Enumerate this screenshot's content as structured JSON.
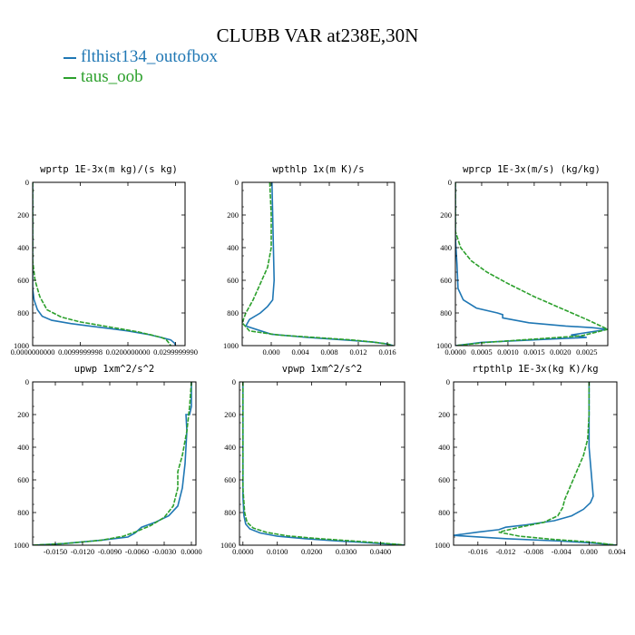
{
  "title": "CLUBB VAR at238E,30N",
  "legend": [
    {
      "label": "flthist134_outofbox",
      "color": "#1f77b4"
    },
    {
      "label": "taus_oob",
      "color": "#2ca02c"
    }
  ],
  "chart_data": [
    {
      "type": "line",
      "title": "wprtp  1E-3x(m kg)/(s kg)",
      "xlim": [
        0.0,
        0.032
      ],
      "ylim": [
        1000,
        0
      ],
      "y_inverted": true,
      "xticks": [
        0.0,
        0.01,
        0.02,
        0.03
      ],
      "xticklabels": [
        "0.0000000000",
        "0.0099999998",
        "0.0200000000",
        "0.0299999990"
      ],
      "yticks": [
        0,
        200,
        400,
        600,
        800,
        1000
      ],
      "series": [
        {
          "name": "flthist134_outofbox",
          "color": "#1f77b4",
          "x": [
            0,
            0,
            0.0003,
            0.001,
            0.002,
            0.004,
            0.008,
            0.012,
            0.016,
            0.02,
            0.024,
            0.027,
            0.029,
            0.0298,
            0.03
          ],
          "y": [
            0,
            650,
            720,
            780,
            820,
            845,
            865,
            880,
            895,
            910,
            930,
            950,
            965,
            985,
            1000
          ]
        },
        {
          "name": "taus_oob",
          "color": "#2ca02c",
          "x": [
            0,
            0,
            0.0005,
            0.0015,
            0.003,
            0.006,
            0.01,
            0.014,
            0.018,
            0.022,
            0.025,
            0.027,
            0.028,
            0.0285,
            0.029
          ],
          "y": [
            0,
            480,
            600,
            700,
            780,
            825,
            855,
            875,
            895,
            915,
            935,
            950,
            962,
            980,
            1000
          ]
        }
      ]
    },
    {
      "type": "line",
      "title": "wpthlp  1x(m K)/s",
      "xlim": [
        -0.004,
        0.017
      ],
      "ylim": [
        1000,
        0
      ],
      "y_inverted": true,
      "xticks": [
        0.0,
        0.004,
        0.008,
        0.012,
        0.016
      ],
      "xticklabels": [
        "0.000",
        "0.004",
        "0.008",
        "0.012",
        "0.016"
      ],
      "yticks": [
        0,
        200,
        400,
        600,
        800,
        1000
      ],
      "series": [
        {
          "name": "flthist134_outofbox",
          "color": "#1f77b4",
          "x": [
            0.0001,
            0.0002,
            0.0003,
            0.0004,
            0.0002,
            -0.0005,
            -0.0015,
            -0.003,
            -0.0035,
            0.0,
            0.005,
            0.01,
            0.014,
            0.016,
            0.0168
          ],
          "y": [
            0,
            200,
            400,
            600,
            720,
            760,
            800,
            840,
            880,
            930,
            950,
            965,
            978,
            990,
            1000
          ]
        },
        {
          "name": "taus_oob",
          "color": "#2ca02c",
          "x": [
            -0.0002,
            0.0,
            0.0,
            -0.0005,
            -0.0015,
            -0.0025,
            -0.0035,
            -0.004,
            -0.003,
            0.001,
            0.006,
            0.011,
            0.014,
            0.016,
            0.0168
          ],
          "y": [
            0,
            200,
            400,
            520,
            620,
            720,
            800,
            860,
            910,
            935,
            950,
            965,
            978,
            990,
            1000
          ]
        }
      ]
    },
    {
      "type": "line",
      "title": "wprcp  1E-3x(m/s) (kg/kg)",
      "xlim": [
        0.0,
        0.0029
      ],
      "ylim": [
        1000,
        0
      ],
      "y_inverted": true,
      "xticks": [
        0.0,
        0.0005,
        0.001,
        0.0015,
        0.002,
        0.0025
      ],
      "xticklabels": [
        "0.0000",
        "0.0005",
        "0.0010",
        "0.0015",
        "0.0020",
        "0.0025"
      ],
      "yticks": [
        0,
        200,
        400,
        600,
        800,
        1000
      ],
      "series": [
        {
          "name": "flthist134_outofbox",
          "color": "#1f77b4",
          "x": [
            0,
            0,
            3e-05,
            5e-05,
            0.00015,
            0.0004,
            0.0008,
            0.0009,
            0.0009,
            0.0014,
            0.0021,
            0.0026,
            0.0029,
            0.0022,
            0.0025,
            0.0018,
            0.0005,
            0.0
          ],
          "y": [
            0,
            340,
            500,
            650,
            720,
            770,
            800,
            810,
            830,
            860,
            880,
            890,
            900,
            935,
            950,
            960,
            980,
            1000
          ]
        },
        {
          "name": "taus_oob",
          "color": "#2ca02c",
          "x": [
            0,
            0,
            0.0001,
            0.0003,
            0.0006,
            0.001,
            0.0015,
            0.002,
            0.0025,
            0.0029,
            0.0024,
            0.0015,
            0.0006,
            0.0
          ],
          "y": [
            0,
            300,
            400,
            480,
            550,
            620,
            700,
            770,
            840,
            900,
            940,
            960,
            980,
            1000
          ]
        }
      ]
    },
    {
      "type": "line",
      "title": "upwp  1xm^2/s^2",
      "xlim": [
        -0.0175,
        0.0005
      ],
      "ylim": [
        1000,
        0
      ],
      "y_inverted": true,
      "xticks": [
        -0.015,
        -0.012,
        -0.009,
        -0.006,
        -0.003,
        0.0
      ],
      "xticklabels": [
        "-0.0150",
        "-0.0120",
        "-0.0090",
        "-0.0060",
        "-0.0030",
        "0.0000"
      ],
      "yticks": [
        0,
        200,
        400,
        600,
        800,
        1000
      ],
      "series": [
        {
          "name": "flthist134_outofbox",
          "color": "#1f77b4",
          "x": [
            0,
            0,
            -0.0002,
            -0.0006,
            -0.0005,
            -0.0007,
            -0.001,
            -0.0015,
            -0.0025,
            -0.004,
            -0.0055,
            -0.0062,
            -0.007,
            -0.01,
            -0.014,
            -0.0175
          ],
          "y": [
            0,
            150,
            200,
            200,
            300,
            500,
            650,
            760,
            820,
            860,
            890,
            925,
            950,
            970,
            990,
            1000
          ]
        },
        {
          "name": "taus_oob",
          "color": "#2ca02c",
          "x": [
            0.0,
            -0.0002,
            -0.0005,
            -0.001,
            -0.0015,
            -0.0015,
            -0.002,
            -0.003,
            -0.0045,
            -0.006,
            -0.0075,
            -0.01,
            -0.014,
            -0.0175
          ],
          "y": [
            0,
            150,
            300,
            450,
            550,
            650,
            760,
            830,
            880,
            915,
            945,
            970,
            990,
            1000
          ]
        }
      ]
    },
    {
      "type": "line",
      "title": "vpwp  1xm^2/s^2",
      "xlim": [
        -0.001,
        0.047
      ],
      "ylim": [
        1000,
        0
      ],
      "y_inverted": true,
      "xticks": [
        0.0,
        0.01,
        0.02,
        0.03,
        0.04
      ],
      "xticklabels": [
        "0.0000",
        "0.0100",
        "0.0200",
        "0.0300",
        "0.0400"
      ],
      "yticks": [
        0,
        200,
        400,
        600,
        800,
        1000
      ],
      "series": [
        {
          "name": "flthist134_outofbox",
          "color": "#1f77b4",
          "x": [
            0.0,
            0.0,
            0.0003,
            0.0008,
            0.002,
            0.005,
            0.01,
            0.018,
            0.026,
            0.034,
            0.04,
            0.045,
            0.047
          ],
          "y": [
            0,
            700,
            820,
            870,
            900,
            925,
            945,
            960,
            972,
            982,
            990,
            996,
            1000
          ]
        },
        {
          "name": "taus_oob",
          "color": "#2ca02c",
          "x": [
            0.0,
            0.0,
            0.0005,
            0.0012,
            0.003,
            0.007,
            0.013,
            0.021,
            0.029,
            0.036,
            0.041,
            0.045,
            0.047
          ],
          "y": [
            0,
            650,
            800,
            860,
            895,
            922,
            943,
            958,
            970,
            980,
            988,
            995,
            1000
          ]
        }
      ]
    },
    {
      "type": "line",
      "title": "rtpthlp  1E-3x(kg K)/kg",
      "xlim": [
        -0.0195,
        0.004
      ],
      "ylim": [
        1000,
        0
      ],
      "y_inverted": true,
      "xticks": [
        -0.016,
        -0.012,
        -0.008,
        -0.004,
        0.0,
        0.004
      ],
      "xticklabels": [
        "-0.016",
        "-0.012",
        "-0.008",
        "-0.004",
        "0.000",
        "0.004"
      ],
      "yticks": [
        0,
        200,
        400,
        600,
        800,
        1000
      ],
      "series": [
        {
          "name": "flthist134_outofbox",
          "color": "#1f77b4",
          "x": [
            0.0,
            0.0,
            0.0,
            0.0003,
            0.0005,
            0.0006,
            0.0002,
            -0.0008,
            -0.0025,
            -0.005,
            -0.009,
            -0.012,
            -0.013,
            -0.016,
            -0.0195,
            -0.012,
            -0.004,
            0.0,
            0.002,
            0.004
          ],
          "y": [
            0,
            200,
            400,
            550,
            650,
            700,
            740,
            780,
            820,
            850,
            875,
            890,
            905,
            920,
            940,
            960,
            975,
            985,
            992,
            1000
          ]
        },
        {
          "name": "taus_oob",
          "color": "#2ca02c",
          "x": [
            0.0,
            0.0,
            -0.0002,
            -0.0008,
            -0.0018,
            -0.0028,
            -0.0035,
            -0.0038,
            -0.0045,
            -0.0065,
            -0.01,
            -0.013,
            -0.01,
            -0.005,
            0.0,
            0.002,
            0.004
          ],
          "y": [
            0,
            200,
            350,
            450,
            550,
            650,
            720,
            770,
            820,
            860,
            890,
            920,
            945,
            965,
            980,
            990,
            1000
          ]
        }
      ]
    }
  ]
}
